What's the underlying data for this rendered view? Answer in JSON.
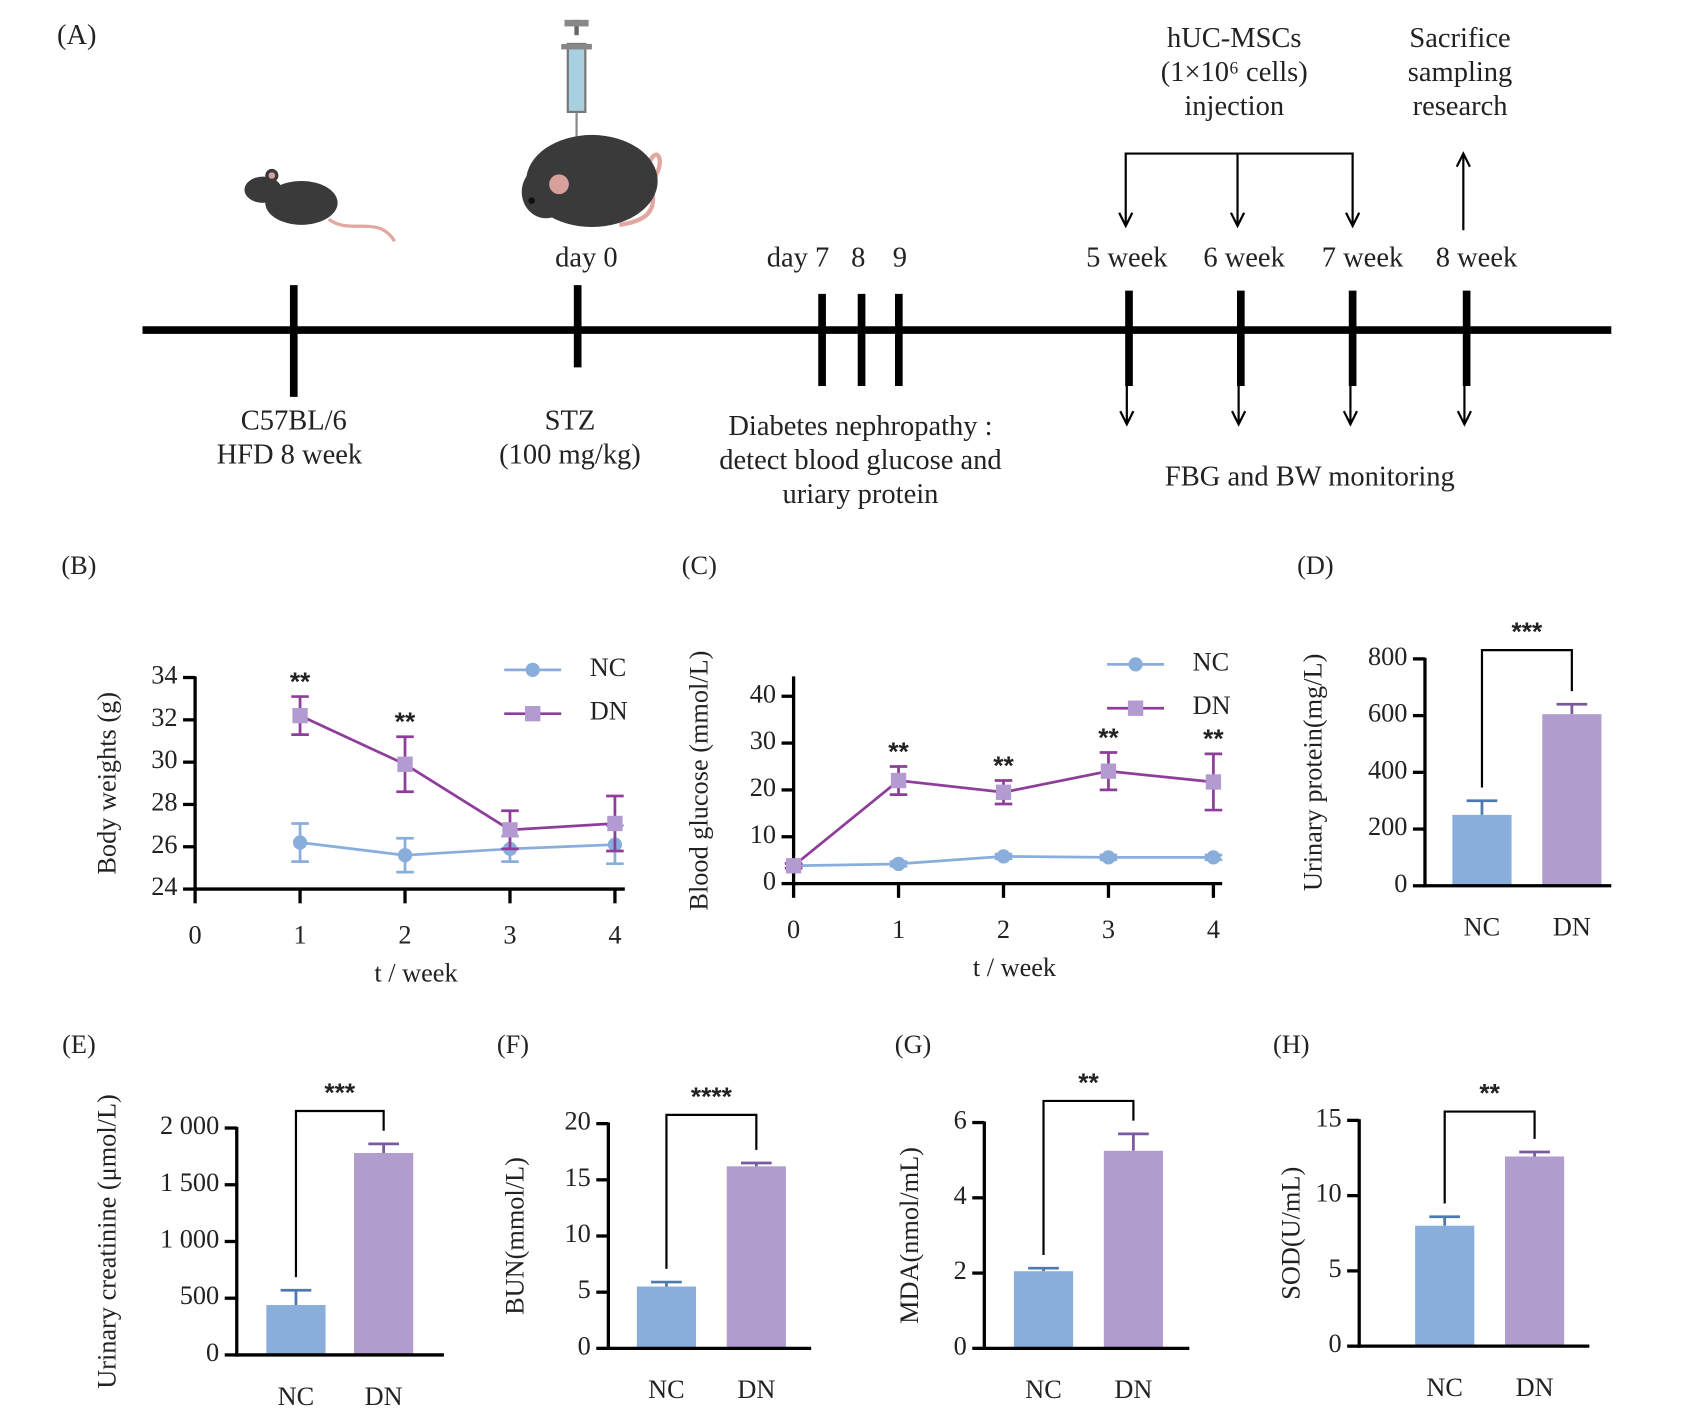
{
  "timeline": {
    "panel": "(A)",
    "start": [
      "C57BL/6",
      "HFD 8 week"
    ],
    "stz_day": "day 0",
    "stz": [
      "STZ",
      "(100 mg/kg)"
    ],
    "days": [
      "day 7",
      "8",
      "9"
    ],
    "nephropathy": [
      "Diabetes nephropathy :",
      "detect blood glucose and",
      "uriary protein"
    ],
    "weeks": [
      "5 week",
      "6 week",
      "7 week",
      "8 week"
    ],
    "injection": [
      "hUC-MSCs",
      "(1×10⁶ cells)",
      "injection"
    ],
    "sacrifice": [
      "Sacrifice",
      "sampling",
      "research"
    ],
    "monitoring": "FBG and BW monitoring"
  },
  "chart_data": [
    {
      "type": "line",
      "panel": "(B)",
      "ylabel": "Body weights (g)",
      "xlabel": "t / week",
      "xlim": [
        0,
        4
      ],
      "xticks": [
        0,
        1,
        2,
        3,
        4
      ],
      "ylim": [
        24,
        34
      ],
      "yticks": [
        24,
        26,
        28,
        30,
        32,
        34
      ],
      "x": [
        1,
        2,
        3,
        4
      ],
      "series": [
        {
          "name": "NC",
          "color": "#8aaedc",
          "marker_color": "#8aaedc",
          "marker": "circle",
          "values": [
            26.2,
            25.6,
            25.9,
            26.1
          ],
          "errors": [
            0.9,
            0.8,
            0.6,
            0.9
          ]
        },
        {
          "name": "DN",
          "color": "#8e3e9a",
          "marker_color": "#b39ad0",
          "marker": "square",
          "values": [
            32.2,
            29.9,
            26.8,
            27.1
          ],
          "errors": [
            0.9,
            1.3,
            0.9,
            1.3
          ]
        }
      ],
      "annotations": [
        {
          "x": 1,
          "text": "**"
        },
        {
          "x": 2,
          "text": "**"
        }
      ]
    },
    {
      "type": "line",
      "panel": "(C)",
      "ylabel": "Blood glucose (mmol/L)",
      "xlabel": "t / week",
      "xlim": [
        0,
        4
      ],
      "xticks": [
        0,
        1,
        2,
        3,
        4
      ],
      "ylim": [
        0,
        44
      ],
      "yticks": [
        0,
        10,
        20,
        30,
        40
      ],
      "x": [
        0,
        1,
        2,
        3,
        4
      ],
      "series": [
        {
          "name": "NC",
          "color": "#8aaedc",
          "marker_color": "#8aaedc",
          "marker": "circle",
          "values": [
            3.8,
            4.2,
            5.8,
            5.6,
            5.6
          ],
          "errors": [
            0.5,
            0.5,
            0.5,
            0.5,
            0.5
          ]
        },
        {
          "name": "DN",
          "color": "#8e3e9a",
          "marker_color": "#b39ad0",
          "marker": "square",
          "values": [
            3.8,
            22,
            19.5,
            24,
            21.7
          ],
          "errors": [
            0.5,
            3,
            2.5,
            4,
            6
          ]
        }
      ],
      "annotations": [
        {
          "x": 1,
          "text": "**"
        },
        {
          "x": 2,
          "text": "**"
        },
        {
          "x": 3,
          "text": "**"
        },
        {
          "x": 4,
          "text": "**"
        }
      ]
    },
    {
      "type": "bar",
      "panel": "(D)",
      "ylabel": "Urinary protein(mg/L)",
      "categories": [
        "NC",
        "DN"
      ],
      "values": [
        250,
        605
      ],
      "errors": [
        50,
        35
      ],
      "colors": [
        "#8aaedc",
        "#b09ccd"
      ],
      "ylim": [
        0,
        800
      ],
      "yticks": [
        0,
        200,
        400,
        600,
        800
      ],
      "significance": "***"
    },
    {
      "type": "bar",
      "panel": "(E)",
      "ylabel": "Urinary creatinine (μmol/L)",
      "categories": [
        "NC",
        "DN"
      ],
      "values": [
        440,
        1780
      ],
      "errors": [
        130,
        80
      ],
      "colors": [
        "#8aaedc",
        "#b09ccd"
      ],
      "ylim": [
        0,
        2000
      ],
      "yticks": [
        0,
        500,
        {
          "value": 1000,
          "label": "1 000"
        },
        {
          "value": 1500,
          "label": "1 500"
        },
        {
          "value": 2000,
          "label": "2 000"
        }
      ],
      "significance": "***"
    },
    {
      "type": "bar",
      "panel": "(F)",
      "ylabel": "BUN(mmol/L)",
      "categories": [
        "NC",
        "DN"
      ],
      "values": [
        5.5,
        16.2
      ],
      "errors": [
        0.4,
        0.3
      ],
      "colors": [
        "#8aaedc",
        "#b09ccd"
      ],
      "ylim": [
        0,
        20
      ],
      "yticks": [
        0,
        5,
        10,
        15,
        20
      ],
      "significance": "****"
    },
    {
      "type": "bar",
      "panel": "(G)",
      "ylabel": "MDA(nmol/mL)",
      "categories": [
        "NC",
        "DN"
      ],
      "values": [
        2.05,
        5.25
      ],
      "errors": [
        0.08,
        0.45
      ],
      "colors": [
        "#8aaedc",
        "#b09ccd"
      ],
      "ylim": [
        0,
        6
      ],
      "yticks": [
        0,
        2,
        4,
        6
      ],
      "significance": "**"
    },
    {
      "type": "bar",
      "panel": "(H)",
      "ylabel": "SOD(U/mL)",
      "categories": [
        "NC",
        "DN"
      ],
      "values": [
        8,
        12.6
      ],
      "errors": [
        0.6,
        0.3
      ],
      "colors": [
        "#8aaedc",
        "#b09ccd"
      ],
      "ylim": [
        0,
        15
      ],
      "yticks": [
        0,
        5,
        10,
        15
      ],
      "significance": "**"
    }
  ]
}
